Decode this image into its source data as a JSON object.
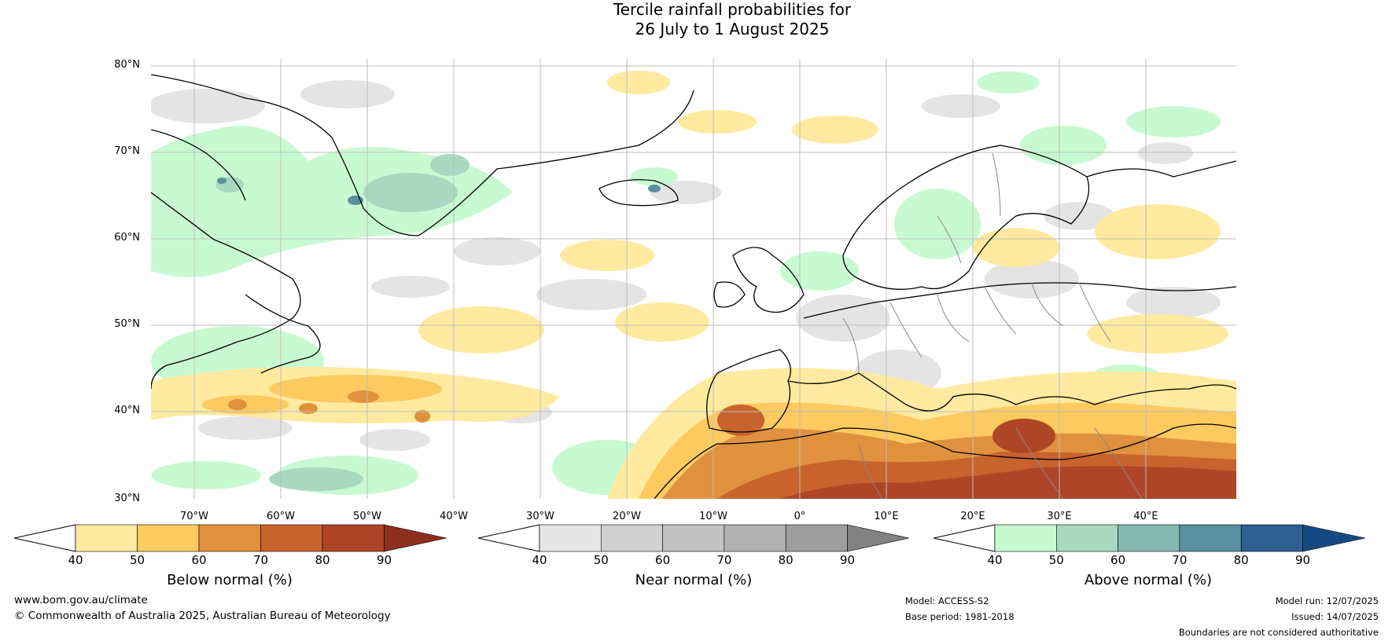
{
  "title_line1": "Tercile rainfall probabilities for",
  "title_line2": "26 July to 1 August 2025",
  "lat_labels": [
    "80°N",
    "70°N",
    "60°N",
    "50°N",
    "40°N",
    "30°N"
  ],
  "lon_labels": [
    "70°W",
    "60°W",
    "50°W",
    "40°W",
    "30°W",
    "20°W",
    "10°W",
    "0°",
    "10°E",
    "20°E",
    "30°E",
    "40°E"
  ],
  "colorbars": {
    "below": {
      "label": "Below normal (%)",
      "ticks": [
        "40",
        "50",
        "60",
        "70",
        "80",
        "90"
      ],
      "colors": [
        "#ffeaa0",
        "#fdca60",
        "#e0913e",
        "#c8632d",
        "#ae4527",
        "#8c2f1d"
      ]
    },
    "near": {
      "label": "Near normal (%)",
      "ticks": [
        "40",
        "50",
        "60",
        "70",
        "80",
        "90"
      ],
      "colors": [
        "#e6e6e6",
        "#d0d0d0",
        "#c2c2c2",
        "#b2b2b2",
        "#9e9e9e",
        "#828282"
      ]
    },
    "above": {
      "label": "Above normal (%)",
      "ticks": [
        "40",
        "50",
        "60",
        "70",
        "80",
        "90"
      ],
      "colors": [
        "#c8fad2",
        "#a8d8bf",
        "#84b8b0",
        "#5a90a0",
        "#2f5f92",
        "#154b82"
      ]
    }
  },
  "footer": {
    "website": "www.bom.gov.au/climate",
    "copyright": "© Commonwealth of Australia 2025, Australian Bureau of Meteorology",
    "model": "Model: ACCESS-S2",
    "base_period": "Base period: 1981-2018",
    "model_run": "Model run: 12/07/2025",
    "issued": "Issued: 14/07/2025",
    "boundaries_note": "Boundaries are not considered authoritative"
  }
}
